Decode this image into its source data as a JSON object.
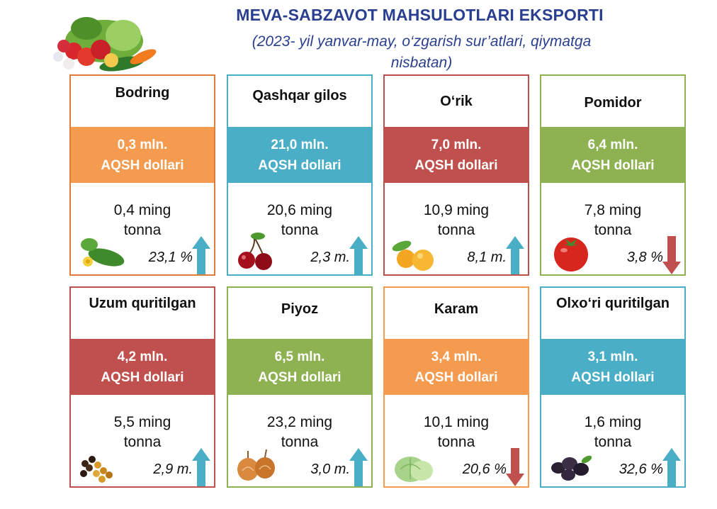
{
  "header": {
    "title": "MEVA-SABZAVOT MAHSULOTLARI EKSPORTI",
    "subtitle_line1": "(2023- yil yanvar-may, o‘zgarish sur’atlari, qiymatga",
    "subtitle_line2": "nisbatan)"
  },
  "colors": {
    "orange": "#f49b50",
    "blue": "#4aaec7",
    "red": "#c0504d",
    "green": "#8eb151",
    "arrow_up": "#4aaec7",
    "arrow_down": "#c0504d",
    "title": "#2a3f8f"
  },
  "products": [
    {
      "name": "Bodring",
      "value": "0,3 mln.",
      "unit": "AQSH dollari",
      "qty": "0,4 ming",
      "qty_unit": "tonna",
      "rate": "23,1 %",
      "trend": "up",
      "color": "orange",
      "icon": "cucumber-icon"
    },
    {
      "name": "Qashqar gilos",
      "value": "21,0 mln.",
      "unit": "AQSH dollari",
      "qty": "20,6 ming",
      "qty_unit": "tonna",
      "rate": "2,3 m.",
      "trend": "up",
      "color": "blue",
      "icon": "cherry-icon"
    },
    {
      "name": "O‘rik",
      "value": "7,0 mln.",
      "unit": "AQSH dollari",
      "qty": "10,9 ming",
      "qty_unit": "tonna",
      "rate": "8,1  m.",
      "trend": "up",
      "color": "red",
      "icon": "apricot-icon"
    },
    {
      "name": "Pomidor",
      "value": "6,4 mln.",
      "unit": "AQSH dollari",
      "qty": "7,8 ming",
      "qty_unit": "tonna",
      "rate": "3,8 %",
      "trend": "down",
      "color": "green",
      "icon": "tomato-icon"
    },
    {
      "name": "Uzum quritilgan",
      "value": "4,2 mln.",
      "unit": "AQSH dollari",
      "qty": "5,5 ming",
      "qty_unit": "tonna",
      "rate": "2,9 m.",
      "trend": "up",
      "color": "red",
      "icon": "raisins-icon"
    },
    {
      "name": "Piyoz",
      "value": "6,5 mln.",
      "unit": "AQSH dollari",
      "qty": "23,2  ming",
      "qty_unit": "tonna",
      "rate": "3,0  m.",
      "trend": "up",
      "color": "green",
      "icon": "onion-icon"
    },
    {
      "name": "Karam",
      "value": "3,4 mln.",
      "unit": "AQSH dollari",
      "qty": "10,1 ming",
      "qty_unit": "tonna",
      "rate": "20,6 %",
      "trend": "down",
      "color": "orange",
      "icon": "cabbage-icon"
    },
    {
      "name": "Olxo‘ri quritilgan",
      "value": "3,1 mln.",
      "unit": "AQSH dollari",
      "qty": "1,6 ming",
      "qty_unit": "tonna",
      "rate": "32,6 %",
      "trend": "up",
      "color": "blue",
      "icon": "prunes-icon"
    }
  ]
}
